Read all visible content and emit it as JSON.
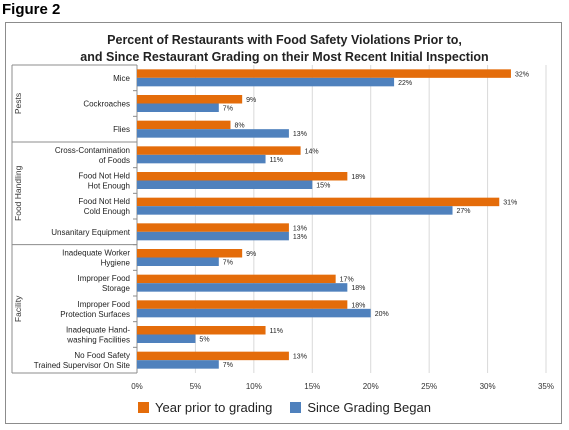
{
  "figure_label": "Figure 2",
  "colors": {
    "year_prior": "#E46C0A",
    "since_grading": "#4F81BD",
    "grid": "#D9D9D9",
    "axis": "#8C8C8C"
  },
  "chart_data": {
    "type": "bar",
    "orientation": "horizontal",
    "title": [
      "Percent of Restaurants with Food Safety Violations Prior to,",
      "and Since Restaurant Grading on their Most Recent Initial Inspection"
    ],
    "xlim": [
      0,
      35
    ],
    "x_ticks": [
      0,
      5,
      10,
      15,
      20,
      25,
      30,
      35
    ],
    "x_tick_labels": [
      "0%",
      "5%",
      "10%",
      "15%",
      "20%",
      "25%",
      "30%",
      "35%"
    ],
    "grid": true,
    "legend_position": "bottom",
    "groups": [
      {
        "name": "Pests",
        "categories": [
          {
            "label": [
              "Mice"
            ],
            "values": [
              32,
              22
            ],
            "data_labels": [
              "32%",
              "22%"
            ]
          },
          {
            "label": [
              "Cockroaches"
            ],
            "values": [
              9,
              7
            ],
            "data_labels": [
              "9%",
              "7%"
            ]
          },
          {
            "label": [
              "Flies"
            ],
            "values": [
              8,
              13
            ],
            "data_labels": [
              "8%",
              "13%"
            ]
          }
        ]
      },
      {
        "name": "Food Handling",
        "categories": [
          {
            "label": [
              "Cross-Contamination",
              "of Foods"
            ],
            "values": [
              14,
              11
            ],
            "data_labels": [
              "14%",
              "11%"
            ]
          },
          {
            "label": [
              "Food Not Held",
              "Hot Enough"
            ],
            "values": [
              18,
              15
            ],
            "data_labels": [
              "18%",
              "15%"
            ]
          },
          {
            "label": [
              "Food Not Held",
              "Cold Enough"
            ],
            "values": [
              31,
              27
            ],
            "data_labels": [
              "31%",
              "27%"
            ]
          },
          {
            "label": [
              "Unsanitary Equipment"
            ],
            "values": [
              13,
              13
            ],
            "data_labels": [
              "13%",
              "13%"
            ]
          }
        ]
      },
      {
        "name": "Facility",
        "categories": [
          {
            "label": [
              "Inadequate Worker",
              "Hygiene"
            ],
            "values": [
              9,
              7
            ],
            "data_labels": [
              "9%",
              "7%"
            ]
          },
          {
            "label": [
              "Improper Food",
              "Storage"
            ],
            "values": [
              17,
              18
            ],
            "data_labels": [
              "17%",
              "18%"
            ]
          },
          {
            "label": [
              "Improper Food",
              "Protection Surfaces"
            ],
            "values": [
              18,
              20
            ],
            "data_labels": [
              "18%",
              "20%"
            ]
          },
          {
            "label": [
              "Inadequate Hand-",
              "washing Facilities"
            ],
            "values": [
              11,
              5
            ],
            "data_labels": [
              "11%",
              "5%"
            ]
          },
          {
            "label": [
              "No Food Safety",
              "Trained Supervisor On Site"
            ],
            "values": [
              13,
              7
            ],
            "data_labels": [
              "13%",
              "7%"
            ]
          }
        ]
      }
    ],
    "series": [
      {
        "name": "Year prior to grading"
      },
      {
        "name": "Since Grading Began"
      }
    ]
  }
}
